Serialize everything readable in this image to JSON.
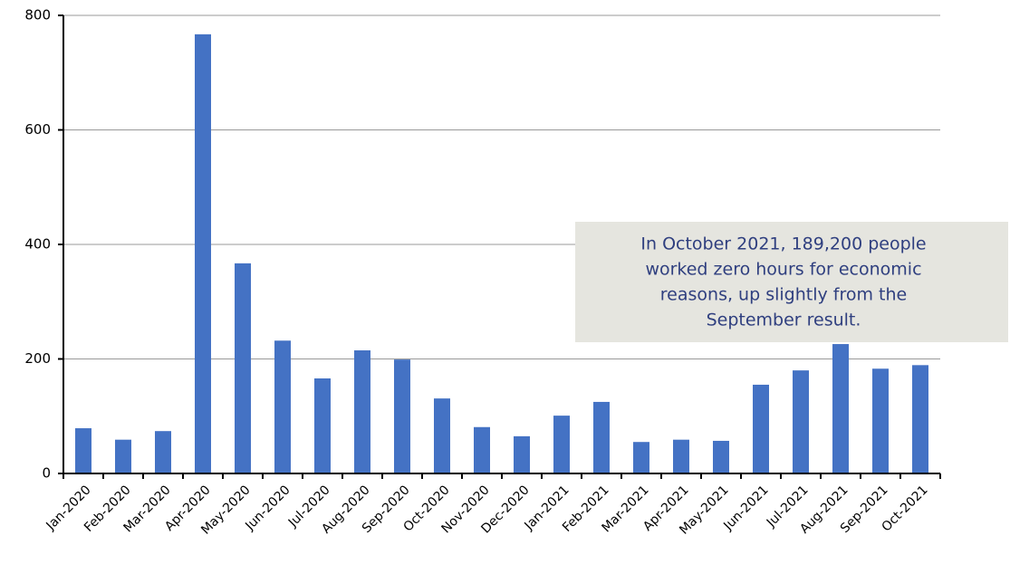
{
  "chart_data": {
    "type": "bar",
    "categories": [
      "Jan-2020",
      "Feb-2020",
      "Mar-2020",
      "Apr-2020",
      "May-2020",
      "Jun-2020",
      "Jul-2020",
      "Aug-2020",
      "Sep-2020",
      "Oct-2020",
      "Nov-2020",
      "Dec-2020",
      "Jan-2021",
      "Feb-2021",
      "Mar-2021",
      "Apr-2021",
      "May-2021",
      "Jun-2021",
      "Jul-2021",
      "Aug-2021",
      "Sep-2021",
      "Oct-2021"
    ],
    "values": [
      79,
      59,
      74,
      767,
      367,
      232,
      166,
      215,
      199,
      131,
      81,
      65,
      101,
      125,
      55,
      59,
      57,
      155,
      180,
      226,
      183,
      189.2
    ],
    "color": "#4472c4",
    "ylim": [
      0,
      800
    ],
    "yticks": [
      0,
      200,
      400,
      600,
      800
    ],
    "grid": true,
    "annotation": [
      "In October 2021, 189,200 people",
      "worked zero hours for economic",
      "reasons, up slightly from the",
      "September result."
    ]
  }
}
